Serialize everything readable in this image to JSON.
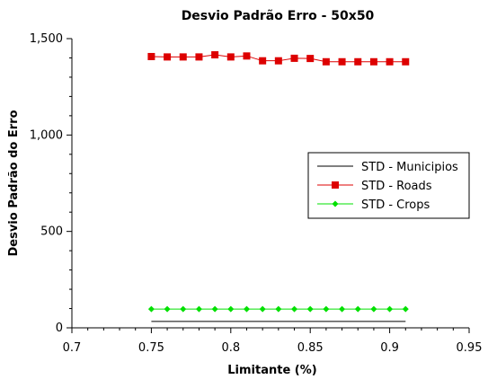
{
  "chart_data": {
    "type": "line",
    "title": "Desvio Padrão Erro - 50x50",
    "xlabel": "Limitante (%)",
    "ylabel": "Desvio Padrão do Erro",
    "xlim": [
      0.7,
      0.95
    ],
    "ylim": [
      0,
      1500
    ],
    "xticks": [
      0.7,
      0.75,
      0.8,
      0.85,
      0.9,
      0.95
    ],
    "xtick_labels": [
      "0.7",
      "0.75",
      "0.8",
      "0.85",
      "0.9",
      "0.95"
    ],
    "yticks": [
      0,
      500,
      1000,
      1500
    ],
    "ytick_labels": [
      "0",
      "500",
      "1,000",
      "1,500"
    ],
    "grid": false,
    "legend_position": "right",
    "x": [
      0.75,
      0.76,
      0.77,
      0.78,
      0.79,
      0.8,
      0.81,
      0.82,
      0.83,
      0.84,
      0.85,
      0.86,
      0.87,
      0.88,
      0.89,
      0.9,
      0.91
    ],
    "series": [
      {
        "name": "STD - Municipios",
        "color": "#000000",
        "marker": "none",
        "values": [
          33,
          33,
          33,
          33,
          33,
          33,
          33,
          33,
          33,
          33,
          33,
          33,
          33,
          33,
          33,
          33,
          33
        ]
      },
      {
        "name": "STD - Roads",
        "color": "#dd0000",
        "marker": "square",
        "values": [
          1407,
          1405,
          1405,
          1405,
          1416,
          1405,
          1410,
          1385,
          1385,
          1398,
          1397,
          1380,
          1380,
          1380,
          1380,
          1380,
          1380
        ]
      },
      {
        "name": "STD - Crops",
        "color": "#00e000",
        "marker": "diamond",
        "values": [
          97,
          97,
          97,
          97,
          97,
          97,
          97,
          97,
          97,
          97,
          97,
          97,
          97,
          97,
          97,
          97,
          97
        ]
      }
    ]
  }
}
